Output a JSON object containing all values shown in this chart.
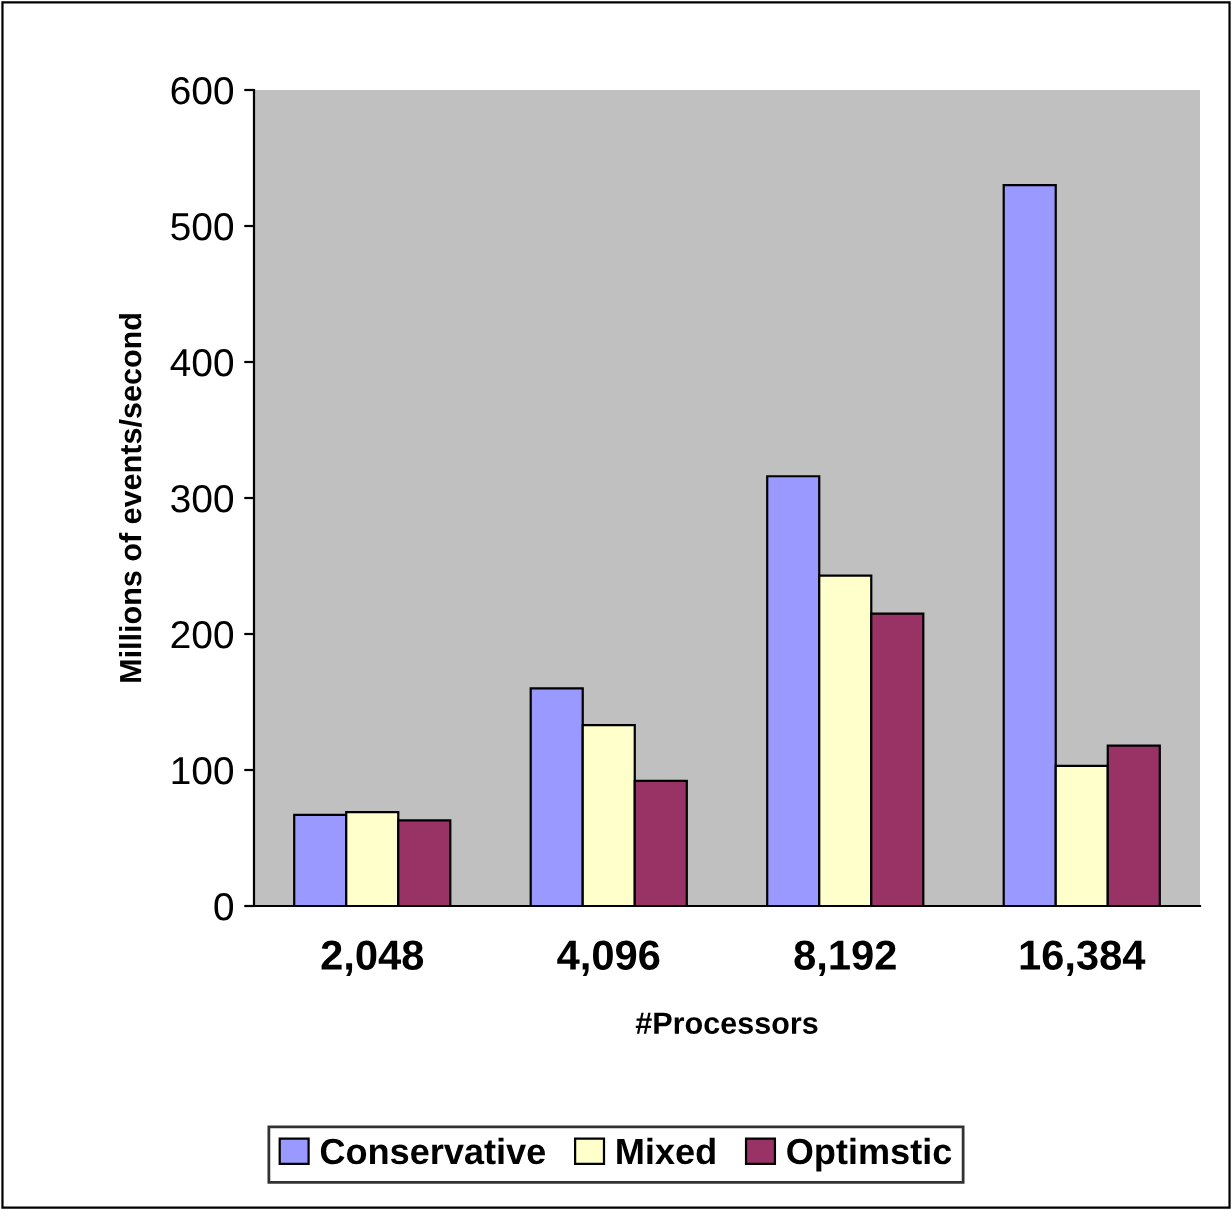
{
  "chart_data": {
    "type": "bar",
    "xlabel": "#Processors",
    "ylabel": "Millions of events/second",
    "categories": [
      "2,048",
      "4,096",
      "8,192",
      "16,384"
    ],
    "series": [
      {
        "name": "Conservative",
        "color": "#9999ff",
        "values": [
          67,
          160,
          316,
          530
        ]
      },
      {
        "name": "Mixed",
        "color": "#ffffcc",
        "values": [
          69,
          133,
          243,
          103
        ]
      },
      {
        "name": "Optimstic",
        "color": "#993366",
        "values": [
          63,
          92,
          215,
          118
        ]
      }
    ],
    "ylim": [
      0,
      600
    ],
    "yticks": [
      0,
      100,
      200,
      300,
      400,
      500,
      600
    ],
    "grid": false,
    "legend": "bottom"
  }
}
